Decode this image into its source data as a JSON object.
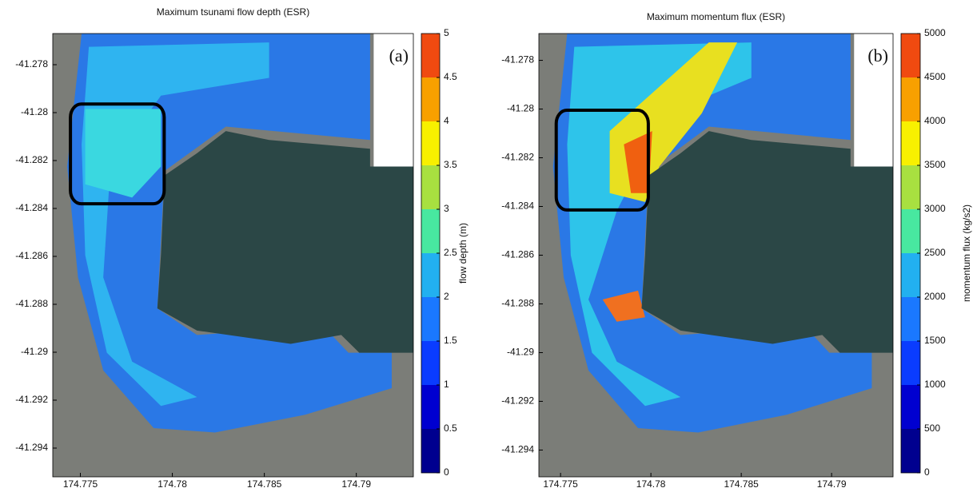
{
  "chart_data": [
    {
      "type": "heatmap",
      "title": "Maximum tsunami flow depth (ESR)",
      "panel_label": "(a)",
      "xlim": [
        174.7735,
        174.7931
      ],
      "xticks": [
        174.775,
        174.78,
        174.785,
        174.79
      ],
      "ylim": [
        -41.2952,
        -41.2767
      ],
      "yticks": [
        -41.294,
        -41.292,
        -41.29,
        -41.288,
        -41.286,
        -41.284,
        -41.282,
        -41.28,
        -41.278
      ],
      "colorbar": {
        "label": "flow depth (m)",
        "lim": [
          0,
          5
        ],
        "ticks": [
          0,
          0.5,
          1,
          1.5,
          2,
          2.5,
          3,
          3.5,
          4,
          4.5,
          5
        ],
        "colors": [
          "#00008f",
          "#0000d0",
          "#0a3cff",
          "#1a78ff",
          "#22b0f0",
          "#2ce6e6",
          "#48e8a0",
          "#a8e040",
          "#f8f000",
          "#f8a000",
          "#f04a10"
        ]
      }
    },
    {
      "type": "heatmap",
      "title": "Maximum momentum flux (ESR)",
      "panel_label": "(b)",
      "xlim": [
        174.7738,
        174.7934
      ],
      "xticks": [
        174.775,
        174.78,
        174.785,
        174.79
      ],
      "ylim": [
        -41.2951,
        -41.2769
      ],
      "yticks": [
        -41.294,
        -41.292,
        -41.29,
        -41.288,
        -41.286,
        -41.284,
        -41.282,
        -41.28,
        -41.278
      ],
      "colorbar": {
        "label": "momentum flux (kg/s2)",
        "lim": [
          0,
          5000
        ],
        "ticks": [
          0,
          500,
          1000,
          1500,
          2000,
          2500,
          3000,
          3500,
          4000,
          4500,
          5000
        ],
        "colors": [
          "#00008f",
          "#0000d0",
          "#0a3cff",
          "#1a78ff",
          "#22b0f0",
          "#2ce6e6",
          "#48e8a0",
          "#a8e040",
          "#f8f000",
          "#f8a000",
          "#f04a10"
        ]
      }
    }
  ]
}
